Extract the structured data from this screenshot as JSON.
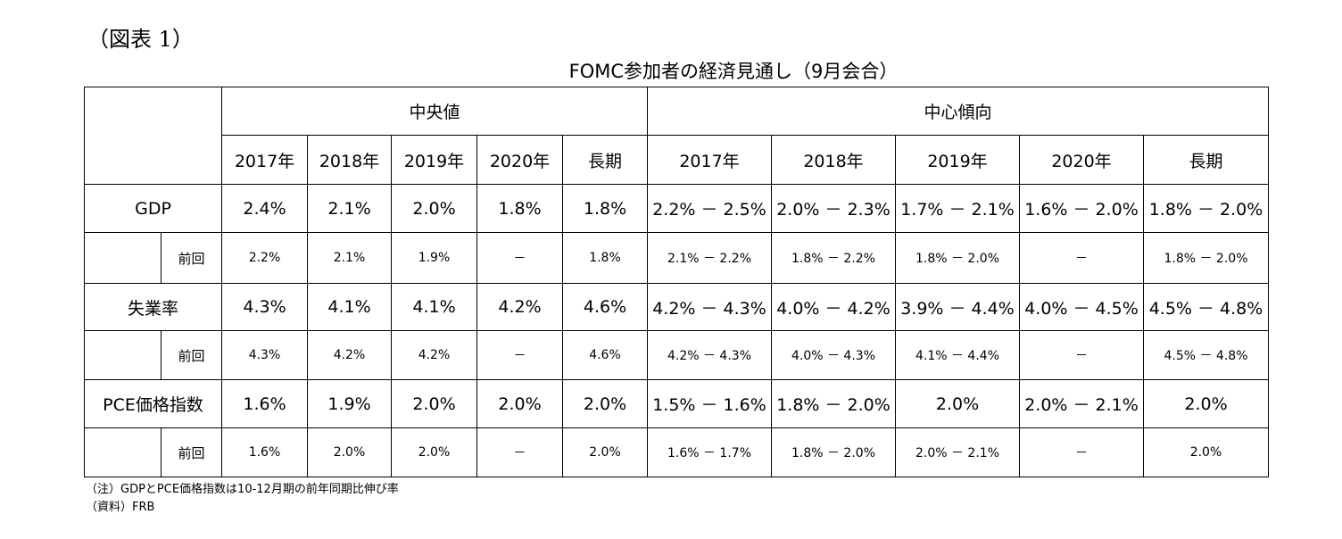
{
  "figure_label": "（図表 1）",
  "title": "FOMC参加者の経済見通し（9月会合）",
  "groups": {
    "median": "中央値",
    "central_tendency": "中心傾向"
  },
  "years": [
    "2017年",
    "2018年",
    "2019年",
    "2020年",
    "長期"
  ],
  "prev_label": "前回",
  "rows": [
    {
      "label": "GDP",
      "median": [
        "2.4%",
        "2.1%",
        "2.0%",
        "1.8%",
        "1.8%"
      ],
      "range": [
        "2.2% － 2.5%",
        "2.0% － 2.3%",
        "1.7% － 2.1%",
        "1.6% － 2.0%",
        "1.8% － 2.0%"
      ],
      "prev_median": [
        "2.2%",
        "2.1%",
        "1.9%",
        "－",
        "1.8%"
      ],
      "prev_range": [
        "2.1% － 2.2%",
        "1.8% － 2.2%",
        "1.8% － 2.0%",
        "－",
        "1.8% － 2.0%"
      ]
    },
    {
      "label": "失業率",
      "median": [
        "4.3%",
        "4.1%",
        "4.1%",
        "4.2%",
        "4.6%"
      ],
      "range": [
        "4.2% － 4.3%",
        "4.0% － 4.2%",
        "3.9% － 4.4%",
        "4.0% － 4.5%",
        "4.5% － 4.8%"
      ],
      "prev_median": [
        "4.3%",
        "4.2%",
        "4.2%",
        "－",
        "4.6%"
      ],
      "prev_range": [
        "4.2% － 4.3%",
        "4.0% － 4.3%",
        "4.1% － 4.4%",
        "－",
        "4.5% － 4.8%"
      ]
    },
    {
      "label": "PCE価格指数",
      "median": [
        "1.6%",
        "1.9%",
        "2.0%",
        "2.0%",
        "2.0%"
      ],
      "range": [
        "1.5% － 1.6%",
        "1.8% － 2.0%",
        "2.0%",
        "2.0% － 2.1%",
        "2.0%"
      ],
      "prev_median": [
        "1.6%",
        "2.0%",
        "2.0%",
        "－",
        "2.0%"
      ],
      "prev_range": [
        "1.6% － 1.7%",
        "1.8% － 2.0%",
        "2.0% － 2.1%",
        "－",
        "2.0%"
      ]
    }
  ],
  "notes": [
    "（注）GDPとPCE価格指数は10-12月期の前年同期比伸び率",
    "（資料）FRB"
  ]
}
